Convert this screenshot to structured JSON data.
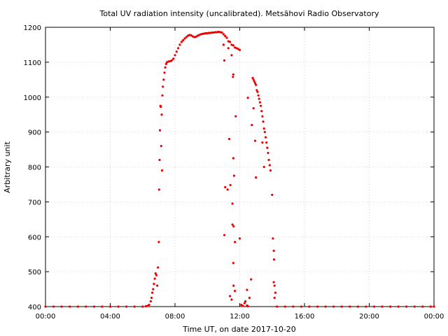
{
  "chart_data": {
    "type": "scatter",
    "title": "Total UV radiation intensity (uncalibrated). Metsähovi Radio Observatory",
    "xlabel": "Time UT, on date 2017-10-20",
    "ylabel": "Arbitrary unit",
    "x_unit": "hours UT",
    "xlim": [
      0,
      24
    ],
    "ylim": [
      400,
      1200
    ],
    "xticks": [
      {
        "value": 0,
        "label": "00:00"
      },
      {
        "value": 4,
        "label": "04:00"
      },
      {
        "value": 8,
        "label": "08:00"
      },
      {
        "value": 12,
        "label": "12:00"
      },
      {
        "value": 16,
        "label": "16:00"
      },
      {
        "value": 20,
        "label": "20:00"
      },
      {
        "value": 24,
        "label": "00:00"
      }
    ],
    "yticks": [
      {
        "value": 400,
        "label": "400"
      },
      {
        "value": 500,
        "label": "500"
      },
      {
        "value": 600,
        "label": "600"
      },
      {
        "value": 700,
        "label": "700"
      },
      {
        "value": 800,
        "label": "800"
      },
      {
        "value": 900,
        "label": "900"
      },
      {
        "value": 1000,
        "label": "1000"
      },
      {
        "value": 1100,
        "label": "1100"
      },
      {
        "value": 1200,
        "label": "1200"
      }
    ],
    "grid": true,
    "legend": "none",
    "color": "#ee0000",
    "series": [
      {
        "points": [
          [
            0.0,
            400
          ],
          [
            0.5,
            400
          ],
          [
            1.0,
            400
          ],
          [
            1.5,
            400
          ],
          [
            2.0,
            400
          ],
          [
            2.5,
            400
          ],
          [
            3.0,
            400
          ],
          [
            3.5,
            400
          ],
          [
            4.0,
            400
          ],
          [
            4.5,
            400
          ],
          [
            5.0,
            400
          ],
          [
            5.5,
            400
          ],
          [
            6.0,
            400
          ],
          [
            6.2,
            401
          ],
          [
            6.3,
            402
          ],
          [
            6.4,
            405
          ],
          [
            6.5,
            415
          ],
          [
            6.55,
            425
          ],
          [
            6.6,
            440
          ],
          [
            6.65,
            450
          ],
          [
            6.7,
            465
          ],
          [
            6.75,
            480
          ],
          [
            6.8,
            495
          ],
          [
            6.85,
            490
          ],
          [
            6.9,
            460
          ],
          [
            6.95,
            512
          ],
          [
            7.0,
            585
          ],
          [
            7.02,
            735
          ],
          [
            7.05,
            820
          ],
          [
            7.07,
            905
          ],
          [
            7.1,
            975
          ],
          [
            7.12,
            972
          ],
          [
            7.15,
            860
          ],
          [
            7.18,
            950
          ],
          [
            7.2,
            790
          ],
          [
            7.22,
            1005
          ],
          [
            7.25,
            1030
          ],
          [
            7.3,
            1050
          ],
          [
            7.35,
            1070
          ],
          [
            7.4,
            1085
          ],
          [
            7.45,
            1095
          ],
          [
            7.5,
            1100
          ],
          [
            7.6,
            1102
          ],
          [
            7.7,
            1103
          ],
          [
            7.8,
            1105
          ],
          [
            7.9,
            1110
          ],
          [
            8.0,
            1120
          ],
          [
            8.1,
            1130
          ],
          [
            8.2,
            1140
          ],
          [
            8.3,
            1150
          ],
          [
            8.4,
            1158
          ],
          [
            8.5,
            1163
          ],
          [
            8.6,
            1168
          ],
          [
            8.7,
            1172
          ],
          [
            8.8,
            1176
          ],
          [
            8.9,
            1178
          ],
          [
            9.0,
            1177
          ],
          [
            9.1,
            1174
          ],
          [
            9.2,
            1172
          ],
          [
            9.3,
            1173
          ],
          [
            9.4,
            1176
          ],
          [
            9.5,
            1178
          ],
          [
            9.6,
            1180
          ],
          [
            9.7,
            1181
          ],
          [
            9.8,
            1182
          ],
          [
            9.9,
            1183
          ],
          [
            10.0,
            1183
          ],
          [
            10.1,
            1184
          ],
          [
            10.2,
            1184
          ],
          [
            10.3,
            1185
          ],
          [
            10.4,
            1185
          ],
          [
            10.5,
            1186
          ],
          [
            10.6,
            1186
          ],
          [
            10.7,
            1187
          ],
          [
            10.8,
            1186
          ],
          [
            10.9,
            1185
          ],
          [
            11.0,
            1180
          ],
          [
            11.1,
            1175
          ],
          [
            11.2,
            1170
          ],
          [
            11.3,
            1160
          ],
          [
            11.4,
            1158
          ],
          [
            11.5,
            1150
          ],
          [
            11.6,
            1148
          ],
          [
            11.7,
            1142
          ],
          [
            11.8,
            1140
          ],
          [
            11.9,
            1138
          ],
          [
            12.0,
            1135
          ],
          [
            11.05,
            1105
          ],
          [
            11.0,
            1150
          ],
          [
            11.3,
            1140
          ],
          [
            11.5,
            1120
          ],
          [
            11.6,
            1065
          ],
          [
            11.58,
            1058
          ],
          [
            11.75,
            945
          ],
          [
            11.35,
            880
          ],
          [
            11.6,
            825
          ],
          [
            11.65,
            775
          ],
          [
            11.1,
            742
          ],
          [
            11.25,
            735
          ],
          [
            11.42,
            748
          ],
          [
            11.55,
            695
          ],
          [
            11.55,
            635
          ],
          [
            11.62,
            630
          ],
          [
            11.05,
            605
          ],
          [
            11.7,
            585
          ],
          [
            12.0,
            595
          ],
          [
            11.6,
            525
          ],
          [
            11.62,
            460
          ],
          [
            11.7,
            445
          ],
          [
            11.4,
            430
          ],
          [
            11.5,
            420
          ],
          [
            12.1,
            405
          ],
          [
            12.2,
            402
          ],
          [
            12.3,
            410
          ],
          [
            12.35,
            415
          ],
          [
            12.45,
            403
          ],
          [
            12.5,
            401
          ],
          [
            12.6,
            425
          ],
          [
            12.7,
            478
          ],
          [
            12.45,
            448
          ],
          [
            12.5,
            998
          ],
          [
            12.8,
            1055
          ],
          [
            12.85,
            1050
          ],
          [
            12.9,
            1045
          ],
          [
            12.95,
            1040
          ],
          [
            13.0,
            1035
          ],
          [
            13.05,
            1020
          ],
          [
            13.1,
            1015
          ],
          [
            13.15,
            1005
          ],
          [
            13.2,
            995
          ],
          [
            13.25,
            985
          ],
          [
            13.3,
            975
          ],
          [
            13.35,
            960
          ],
          [
            13.4,
            945
          ],
          [
            13.45,
            930
          ],
          [
            13.5,
            910
          ],
          [
            13.55,
            900
          ],
          [
            13.6,
            885
          ],
          [
            13.65,
            870
          ],
          [
            13.7,
            855
          ],
          [
            13.75,
            840
          ],
          [
            13.8,
            820
          ],
          [
            13.85,
            805
          ],
          [
            13.9,
            790
          ],
          [
            12.85,
            968
          ],
          [
            12.75,
            920
          ],
          [
            12.95,
            875
          ],
          [
            13.0,
            770
          ],
          [
            13.5,
            800
          ],
          [
            13.4,
            870
          ],
          [
            14.0,
            720
          ],
          [
            14.05,
            595
          ],
          [
            14.1,
            560
          ],
          [
            14.12,
            535
          ],
          [
            14.1,
            470
          ],
          [
            14.15,
            460
          ],
          [
            14.2,
            440
          ],
          [
            14.15,
            425
          ],
          [
            14.3,
            400
          ],
          [
            14.8,
            400
          ],
          [
            15.3,
            400
          ],
          [
            15.8,
            400
          ],
          [
            16.3,
            400
          ],
          [
            16.8,
            400
          ],
          [
            17.3,
            400
          ],
          [
            17.8,
            400
          ],
          [
            18.3,
            400
          ],
          [
            18.8,
            400
          ],
          [
            19.3,
            400
          ],
          [
            19.8,
            400
          ],
          [
            20.3,
            400
          ],
          [
            20.8,
            400
          ],
          [
            21.3,
            400
          ],
          [
            21.8,
            400
          ],
          [
            22.3,
            400
          ],
          [
            22.8,
            400
          ],
          [
            23.3,
            400
          ],
          [
            23.8,
            400
          ],
          [
            24.0,
            400
          ]
        ]
      }
    ]
  }
}
